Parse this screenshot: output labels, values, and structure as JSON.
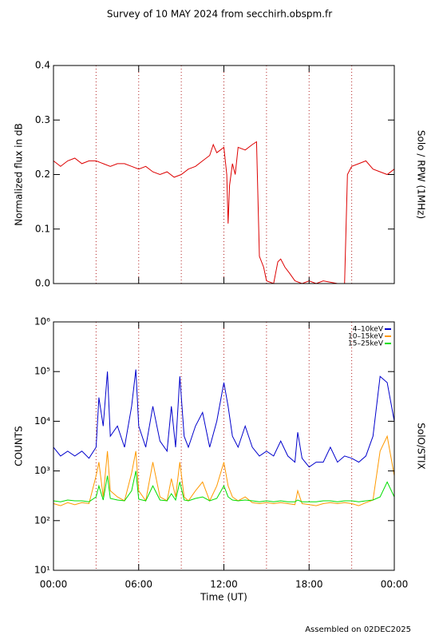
{
  "title": "Survey of 10 MAY 2024 from secchirh.obspm.fr",
  "footer": "Assembled on 02DEC2025",
  "chart_data": [
    {
      "type": "line",
      "ylabel": "Normalized flux in dB",
      "right_label": "Solo / RPW (1MHz)",
      "xlim": [
        0,
        24
      ],
      "xticks": [
        0,
        6,
        12,
        18,
        24
      ],
      "ylim": [
        0,
        0.4
      ],
      "yticks": [
        {
          "value": 0,
          "label": "0.0"
        },
        0.1,
        0.2,
        0.3,
        0.4
      ],
      "vlines": [
        3,
        6,
        9,
        12,
        15,
        18,
        21
      ],
      "vline_color": "#b22222",
      "x": [
        0,
        0.5,
        1,
        1.5,
        2,
        2.5,
        3,
        3.5,
        4,
        4.5,
        5,
        5.5,
        6,
        6.5,
        7,
        7.5,
        8,
        8.5,
        9,
        9.5,
        10,
        10.5,
        11,
        11.25,
        11.5,
        11.75,
        12,
        12.2,
        12.3,
        12.4,
        12.6,
        12.8,
        13,
        13.5,
        14,
        14.3,
        14.5,
        14.8,
        15,
        15.5,
        15.8,
        16,
        16.3,
        16.6,
        17,
        17.5,
        18,
        18.5,
        19,
        20,
        20.5,
        20.7,
        21,
        21.5,
        22,
        22.5,
        23,
        23.5,
        24
      ],
      "series": [
        {
          "name": "Solo / RPW (1MHz)",
          "color": "#dd0000",
          "values": [
            0.225,
            0.215,
            0.225,
            0.23,
            0.22,
            0.225,
            0.225,
            0.22,
            0.215,
            0.22,
            0.22,
            0.215,
            0.21,
            0.215,
            0.205,
            0.2,
            0.205,
            0.195,
            0.2,
            0.21,
            0.215,
            0.225,
            0.235,
            0.255,
            0.24,
            0.245,
            0.25,
            0.2,
            0.11,
            0.18,
            0.22,
            0.2,
            0.25,
            0.245,
            0.255,
            0.26,
            0.05,
            0.03,
            0.005,
            0,
            0.04,
            0.045,
            0.03,
            0.02,
            0.005,
            0,
            0.005,
            0,
            0.005,
            0,
            0,
            0.2,
            0.215,
            0.22,
            0.225,
            0.21,
            0.205,
            0.2,
            0.21
          ]
        }
      ]
    },
    {
      "type": "line",
      "ylabel": "COUNTS",
      "right_label": "SolO/STIX",
      "xlabel": "Time (UT)",
      "log_y": true,
      "legend": "upper right",
      "xlim": [
        0,
        24
      ],
      "xticks": [
        {
          "value": 0,
          "label": "00:00"
        },
        {
          "value": 6,
          "label": "06:00"
        },
        {
          "value": 12,
          "label": "12:00"
        },
        {
          "value": 18,
          "label": "18:00"
        },
        {
          "value": 24,
          "label": "00:00"
        }
      ],
      "ylim": [
        10,
        1000000
      ],
      "yticks": [
        {
          "value": 10,
          "label": "10¹"
        },
        {
          "value": 100,
          "label": "10²"
        },
        {
          "value": 1000,
          "label": "10³"
        },
        {
          "value": 10000,
          "label": "10⁴"
        },
        {
          "value": 100000,
          "label": "10⁵"
        },
        {
          "value": 1000000,
          "label": "10⁶"
        }
      ],
      "vlines": [
        3,
        6,
        9,
        12,
        15,
        18,
        21
      ],
      "vline_color": "#b22222",
      "x": [
        0,
        0.5,
        1,
        1.5,
        2,
        2.5,
        3,
        3.2,
        3.5,
        3.8,
        4,
        4.5,
        5,
        5.5,
        5.8,
        6,
        6.5,
        7,
        7.5,
        8,
        8.3,
        8.6,
        8.9,
        9.2,
        9.5,
        10,
        10.5,
        11,
        11.5,
        12,
        12.3,
        12.6,
        13,
        13.5,
        14,
        14.5,
        15,
        15.5,
        16,
        16.5,
        17,
        17.2,
        17.5,
        18,
        18.5,
        19,
        19.5,
        20,
        20.5,
        21,
        21.5,
        22,
        22.5,
        23,
        23.5,
        24
      ],
      "series": [
        {
          "name": "4–10keV",
          "color": "#0000cc",
          "values": [
            3000,
            2000,
            2500,
            2000,
            2500,
            1800,
            3000,
            30000,
            8000,
            100000,
            5000,
            8000,
            3000,
            20000,
            110000,
            8000,
            3000,
            20000,
            4000,
            2500,
            20000,
            3000,
            80000,
            5000,
            3000,
            8000,
            15000,
            3000,
            10000,
            60000,
            20000,
            5000,
            3000,
            8000,
            3000,
            2000,
            2500,
            2000,
            4000,
            2000,
            1500,
            6000,
            1800,
            1200,
            1500,
            1500,
            3000,
            1500,
            2000,
            1800,
            1500,
            2000,
            5000,
            80000,
            60000,
            10000
          ]
        },
        {
          "name": "10–15keV",
          "color": "#ff9900",
          "values": [
            220,
            200,
            230,
            210,
            230,
            220,
            800,
            1500,
            300,
            2500,
            400,
            300,
            250,
            900,
            2500,
            400,
            250,
            1500,
            300,
            250,
            700,
            300,
            1500,
            300,
            250,
            400,
            600,
            250,
            500,
            1500,
            500,
            300,
            250,
            300,
            230,
            220,
            230,
            220,
            230,
            220,
            210,
            400,
            220,
            210,
            200,
            220,
            230,
            220,
            230,
            220,
            200,
            230,
            260,
            2500,
            5000,
            800
          ]
        },
        {
          "name": "15–25keV",
          "color": "#00dd00",
          "values": [
            250,
            240,
            260,
            250,
            250,
            240,
            300,
            500,
            260,
            800,
            280,
            260,
            250,
            400,
            1000,
            270,
            250,
            500,
            260,
            250,
            350,
            260,
            600,
            260,
            250,
            280,
            300,
            250,
            280,
            500,
            300,
            260,
            250,
            260,
            250,
            240,
            250,
            240,
            250,
            240,
            240,
            260,
            240,
            240,
            240,
            250,
            250,
            240,
            250,
            250,
            240,
            250,
            260,
            300,
            600,
            300
          ]
        }
      ]
    }
  ]
}
